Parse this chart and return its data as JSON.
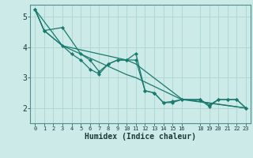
{
  "title": "",
  "xlabel": "Humidex (Indice chaleur)",
  "bg_color": "#cceae7",
  "grid_color": "#afd8d4",
  "line_color": "#1a7a6e",
  "xlim": [
    -0.5,
    23.5
  ],
  "ylim": [
    1.5,
    5.4
  ],
  "xticks": [
    0,
    1,
    2,
    3,
    4,
    5,
    6,
    7,
    8,
    9,
    10,
    11,
    12,
    13,
    14,
    15,
    16,
    18,
    19,
    20,
    21,
    22,
    23
  ],
  "yticks": [
    2,
    3,
    4,
    5
  ],
  "series": [
    {
      "name": "line1_with_markers",
      "x": [
        0,
        1,
        3,
        5,
        6,
        7,
        8,
        9,
        10,
        11,
        12,
        13,
        14,
        15,
        16,
        18,
        19,
        20,
        21,
        22,
        23
      ],
      "y": [
        5.25,
        4.55,
        4.65,
        3.78,
        3.58,
        3.2,
        3.45,
        3.58,
        3.58,
        3.8,
        2.57,
        2.5,
        2.18,
        2.22,
        2.28,
        2.28,
        2.05,
        2.28,
        2.28,
        2.28,
        2.0
      ],
      "has_markers": true
    },
    {
      "name": "line2_with_markers",
      "x": [
        0,
        1,
        3,
        4,
        5,
        6,
        7,
        8,
        9,
        10,
        11,
        12,
        13,
        14,
        15,
        16,
        18,
        19,
        20,
        21,
        22,
        23
      ],
      "y": [
        5.25,
        4.55,
        4.05,
        3.78,
        3.58,
        3.28,
        3.12,
        3.45,
        3.58,
        3.58,
        3.58,
        2.57,
        2.5,
        2.18,
        2.18,
        2.28,
        2.28,
        2.1,
        2.28,
        2.28,
        2.28,
        2.0
      ],
      "has_markers": true
    },
    {
      "name": "line3_smooth",
      "x": [
        0,
        1,
        3,
        10,
        11,
        16,
        23
      ],
      "y": [
        5.25,
        4.55,
        4.05,
        3.1,
        3.0,
        2.28,
        2.0
      ],
      "has_markers": false
    },
    {
      "name": "line4_smooth",
      "x": [
        0,
        3,
        10,
        11,
        16,
        23
      ],
      "y": [
        5.25,
        4.05,
        3.58,
        3.45,
        2.3,
        2.0
      ],
      "has_markers": false
    }
  ]
}
